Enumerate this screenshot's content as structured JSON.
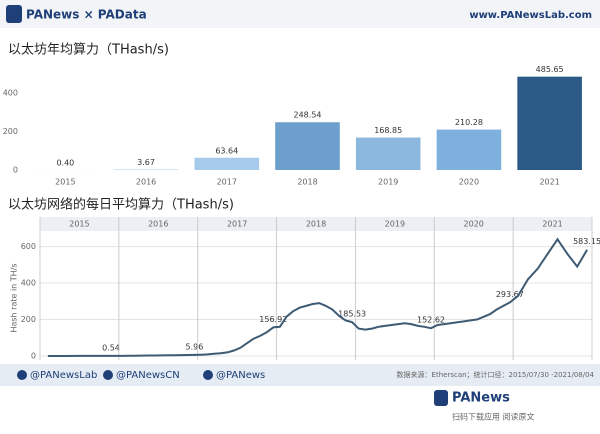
{
  "header": {
    "logo": "PANews × PAData",
    "site": "www.PANewsLab.com"
  },
  "chart_data": [
    {
      "type": "bar",
      "title": "以太坊年均算力（THash/s)",
      "categories": [
        "2015",
        "2016",
        "2017",
        "2018",
        "2019",
        "2020",
        "2021"
      ],
      "values": [
        0.4,
        3.67,
        63.64,
        248.54,
        168.85,
        210.28,
        485.65
      ],
      "value_labels": [
        "0.40",
        "3.67",
        "63.64",
        "248.54",
        "168.85",
        "210.28",
        "485.65"
      ],
      "colors": [
        "#c4d9ee",
        "#c4d9ee",
        "#a6cbea",
        "#6c9fcb",
        "#8cb8e0",
        "#7eb0de",
        "#2c5a86"
      ],
      "ylim": [
        0,
        510
      ],
      "yticks": [
        0,
        200,
        400
      ],
      "grid": false
    },
    {
      "type": "line",
      "title": "以太坊网络的每日平均算力（THash/s)",
      "ylabel": "Hash rate in TH/s",
      "categories": [
        "2015",
        "2016",
        "2017",
        "2018",
        "2019",
        "2020",
        "2021"
      ],
      "color": "#3e5b74",
      "values": [
        [
          0.1,
          0.2,
          0.3,
          0.4,
          0.54
        ],
        [
          0.8,
          1.2,
          1.5,
          2,
          2.5,
          3,
          3.5,
          4,
          4.5,
          5,
          5.5,
          5.96
        ],
        [
          7,
          9,
          12,
          15,
          20,
          30,
          45,
          70,
          95,
          110,
          130,
          156.92
        ],
        [
          160,
          215,
          245,
          265,
          275,
          285,
          290,
          275,
          255,
          220,
          195,
          185.53
        ],
        [
          150,
          145,
          150,
          160,
          165,
          170,
          175,
          180,
          175,
          165,
          160,
          152.62
        ],
        [
          170,
          175,
          180,
          185,
          190,
          195,
          200,
          215,
          230,
          255,
          275,
          293.67
        ],
        [
          330,
          420,
          480,
          560,
          640,
          560,
          490,
          583.15
        ]
      ],
      "annotations": [
        0.54,
        5.96,
        156.92,
        185.53,
        152.62,
        293.67,
        583.15
      ],
      "ylim": [
        0,
        680
      ],
      "yticks": [
        0,
        200,
        400,
        600
      ],
      "grid": true
    }
  ],
  "footer": {
    "handles": [
      "@PANewsLab",
      "@PANewsCN",
      "@PANews"
    ],
    "source": "数据来源：Etherscan；统计口径：2015/07/30 -2021/08/04",
    "brand": "PANews",
    "cta": "扫码下载应用  阅读原文"
  }
}
